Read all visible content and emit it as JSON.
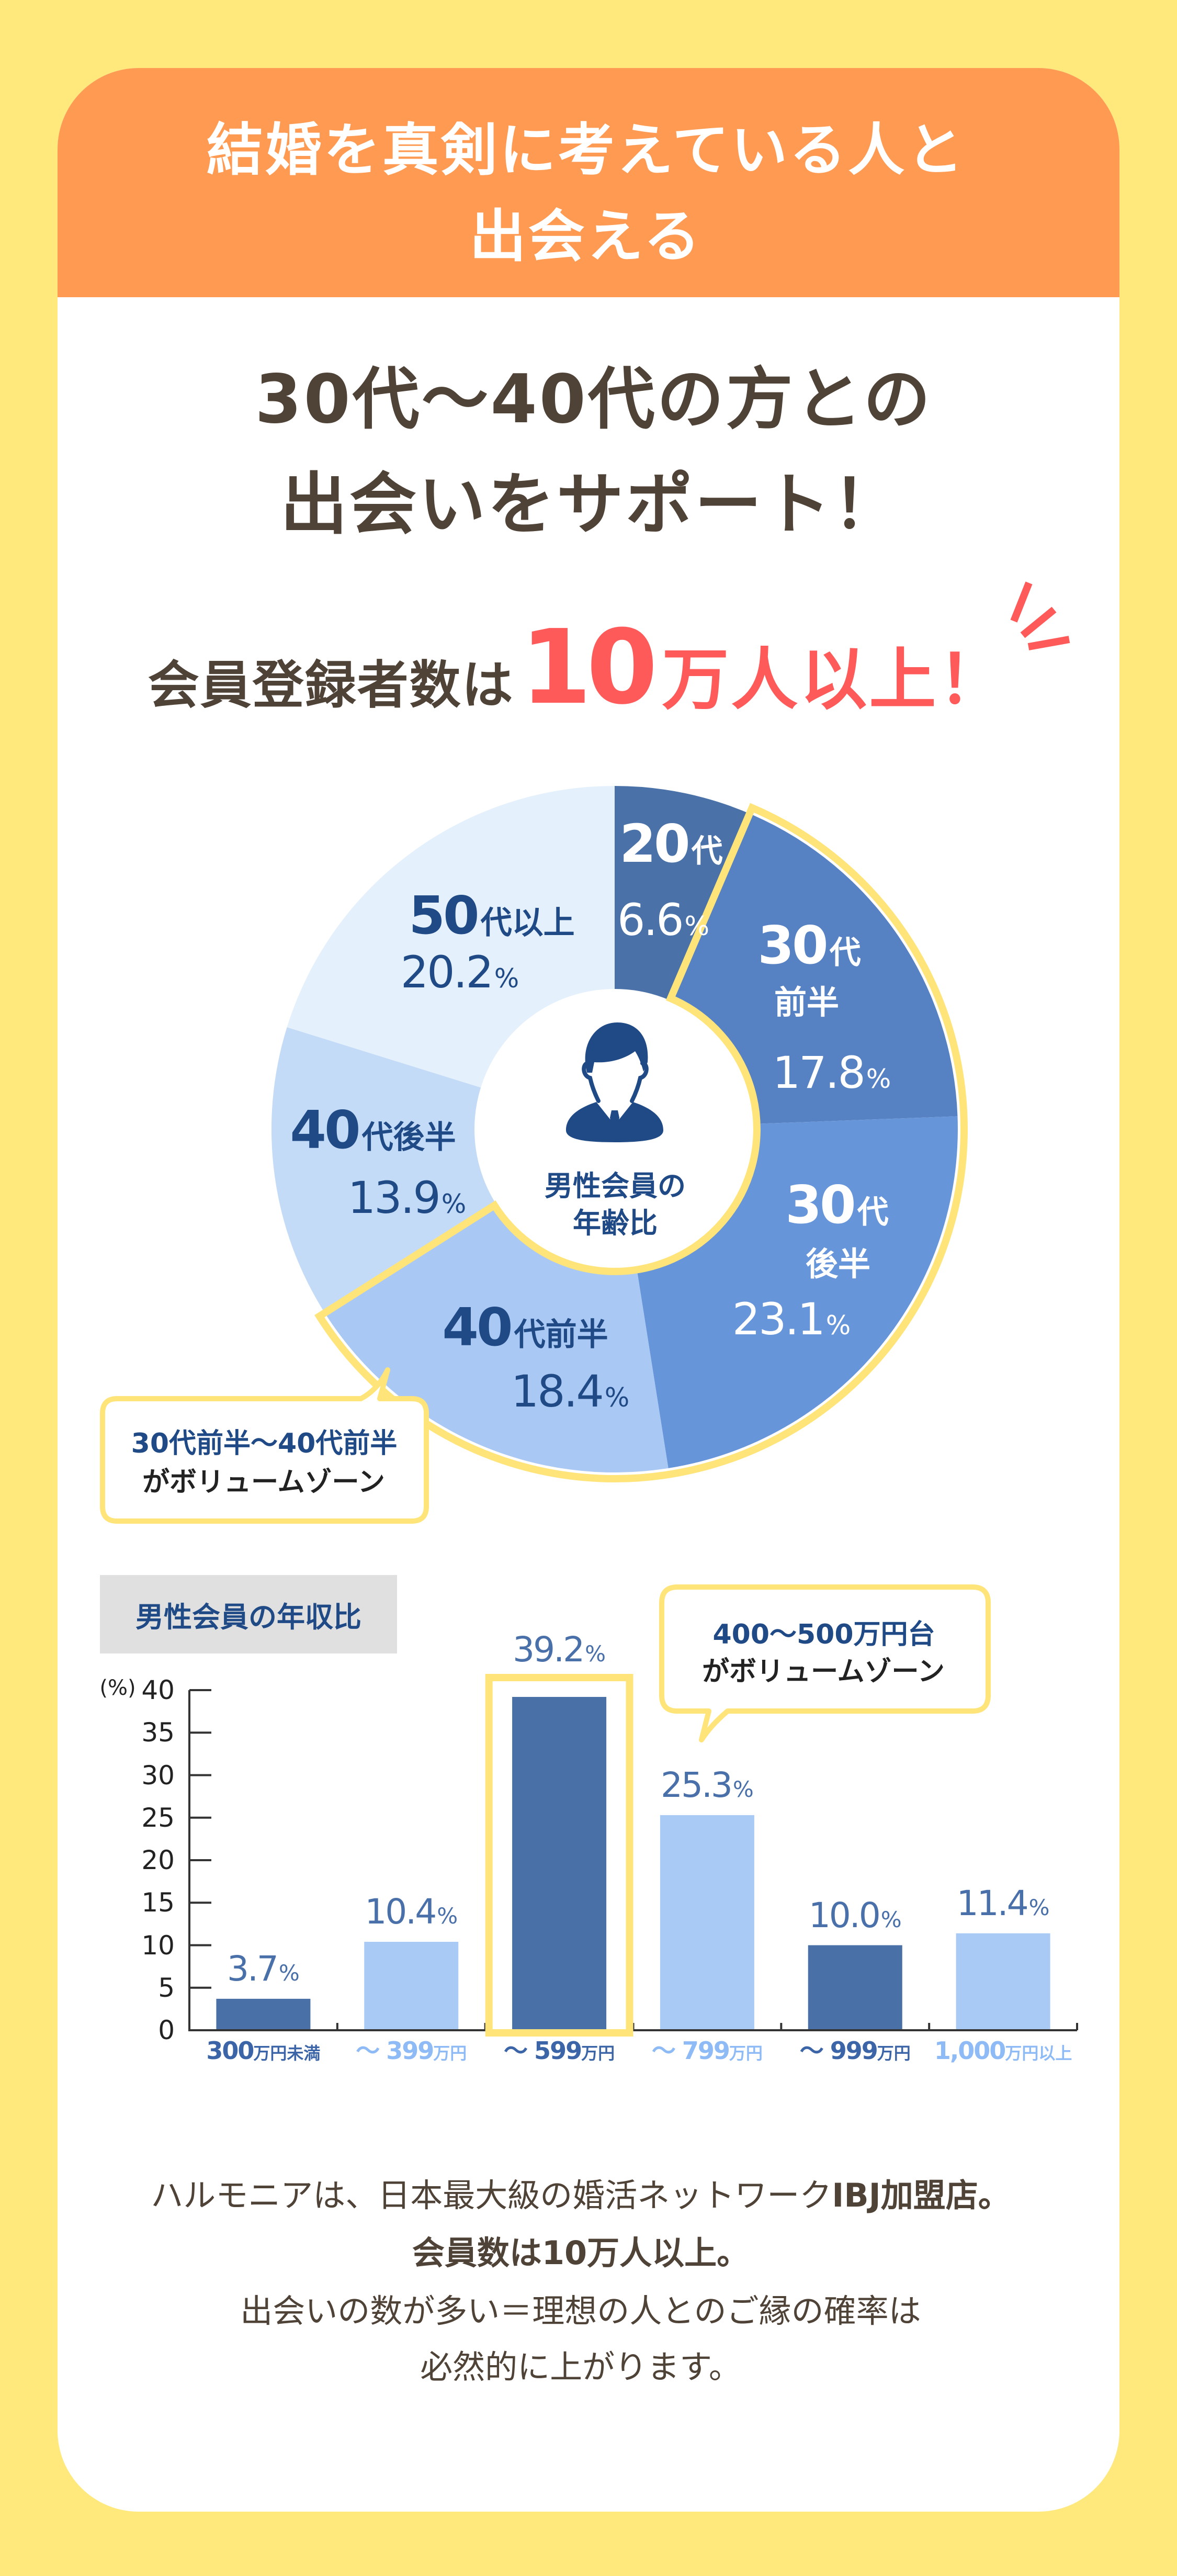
{
  "header": {
    "title_lines": [
      "結婚を真剣に考えている人と",
      "出会える"
    ]
  },
  "headline": {
    "lines": [
      "30代〜40代の方との",
      "出会いをサポート！"
    ]
  },
  "members": {
    "prefix": "会員登録者数は",
    "number": "10",
    "suffix": "万人以上！",
    "decoration": "sparkle-lines-icon"
  },
  "age_chart": {
    "center_icon": "male-businessman-icon",
    "center_label_lines": [
      "男性会員の",
      "年齢比"
    ],
    "callout_lines": [
      "30代前半〜40代前半",
      "がボリュームゾーン"
    ]
  },
  "income_chart": {
    "title": "男性会員の年収比",
    "callout_lines": [
      "400〜500万円台",
      "がボリュームゾーン"
    ]
  },
  "footer": {
    "lines": [
      {
        "parts": [
          "ハルモニアは、日本最大級の婚活ネットワーク",
          "IBJ加盟店。"
        ]
      },
      {
        "parts": [
          "会員数は10万人以上。"
        ]
      },
      {
        "parts": [
          "出会いの数が多い＝理想の人とのご縁の確率は"
        ]
      },
      {
        "parts": [
          "必然的に上がります。"
        ]
      }
    ],
    "bold_segments": [
      "IBJ加盟店。",
      "会員数は10万人以上。"
    ]
  },
  "colors": {
    "page_bg": "#FFE87C",
    "header_bg": "#FF9A53",
    "text_dark": "#4F4236",
    "accent_red": "#FF5A5A",
    "highlight_yellow": "#FFE47A",
    "navy": "#1F4A86",
    "axis": "#333333"
  },
  "chart_data": [
    {
      "type": "pie",
      "title": "男性会員の年齢比",
      "donut": true,
      "start_angle": 0,
      "direction": "clockwise",
      "categories": [
        "20代",
        "30代前半",
        "30代後半",
        "40代前半",
        "40代後半",
        "50代以上"
      ],
      "values": [
        6.6,
        17.8,
        23.1,
        18.4,
        13.9,
        20.2
      ],
      "value_labels": [
        "6.6",
        "17.8",
        "23.1",
        "18.4",
        "13.9",
        "20.2"
      ],
      "unit": "%",
      "label_parts": [
        {
          "num": "20",
          "suffix": "代",
          "sub": ""
        },
        {
          "num": "30",
          "suffix": "代",
          "sub": "前半"
        },
        {
          "num": "30",
          "suffix": "代",
          "sub": "後半"
        },
        {
          "num": "40",
          "suffix": "代前半",
          "sub": ""
        },
        {
          "num": "40",
          "suffix": "代後半",
          "sub": ""
        },
        {
          "num": "50",
          "suffix": "代以上",
          "sub": ""
        }
      ],
      "colors": [
        "#4A72A8",
        "#5682C4",
        "#6795D9",
        "#A9C8F3",
        "#C3DBF6",
        "#E4F0FC"
      ],
      "highlight": [
        "30代前半",
        "30代後半",
        "40代前半"
      ],
      "annotation": "30代前半〜40代前半がボリュームゾーン",
      "legend": "none"
    },
    {
      "type": "bar",
      "title": "男性会員の年収比",
      "categories": [
        "300万円未満",
        "〜399万円",
        "〜599万円",
        "〜799万円",
        "〜999万円",
        "1,000万円以上"
      ],
      "category_parts": [
        {
          "num": "300",
          "unit": "万円未満"
        },
        {
          "num": "〜 399",
          "unit": "万円"
        },
        {
          "num": "〜 599",
          "unit": "万円"
        },
        {
          "num": "〜 799",
          "unit": "万円"
        },
        {
          "num": "〜 999",
          "unit": "万円"
        },
        {
          "num": "1,000",
          "unit": "万円以上"
        }
      ],
      "values": [
        3.7,
        10.4,
        39.2,
        25.3,
        10.0,
        11.4
      ],
      "value_labels": [
        "3.7",
        "10.4",
        "39.2",
        "25.3",
        "10.0",
        "11.4"
      ],
      "unit": "%",
      "colors": [
        "#4A70A8",
        "#A9CAF5",
        "#4A70A8",
        "#A9CAF5",
        "#4A70A8",
        "#A9CAF5"
      ],
      "label_color": "#4A70AA",
      "category_label_colors": [
        "#3C65A8",
        "#8EBBF5",
        "#3C65A8",
        "#8EBBF5",
        "#3C65A8",
        "#8EBBF5"
      ],
      "xlabel": "",
      "ylabel": "(%)",
      "ylim": [
        0,
        40
      ],
      "yticks": [
        0,
        5,
        10,
        15,
        20,
        25,
        30,
        35,
        40
      ],
      "grid": false,
      "highlight_index": 2,
      "annotation": "400〜500万円台がボリュームゾーン"
    }
  ]
}
